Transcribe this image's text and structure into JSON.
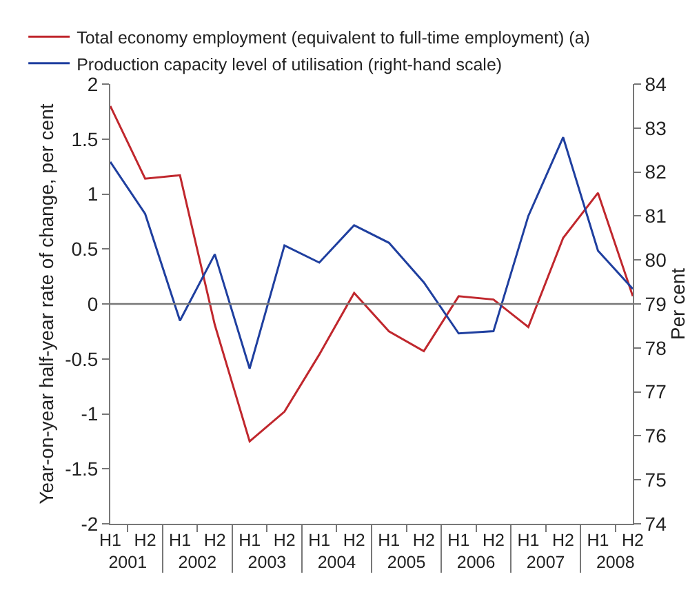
{
  "chart_data": {
    "type": "line",
    "ylabel": "Year-on-year half-year rate of change, per cent",
    "y2label": "Per cent",
    "categories": [
      "H1",
      "H2",
      "H1",
      "H2",
      "H1",
      "H2",
      "H1",
      "H2",
      "H1",
      "H2",
      "H1",
      "H2",
      "H1",
      "H2",
      "H1",
      "H2"
    ],
    "annotations": [
      "2001",
      "2002",
      "2003",
      "2004",
      "2005",
      "2006",
      "2007",
      "2008"
    ],
    "series": [
      {
        "name": "Total economy employment (equivalent to full-time employment) (a)",
        "color": "#c0272d",
        "values": [
          1.8,
          1.14,
          1.17,
          -0.19,
          -1.25,
          -0.98,
          -0.46,
          0.1,
          -0.25,
          -0.43,
          0.07,
          0.04,
          -0.21,
          0.6,
          1.01,
          0.07
        ]
      },
      {
        "name": "Production capacity level of utilisation (right-hand scale)",
        "color": "#1f3f9f",
        "axis": "y2",
        "values": [
          82.23,
          81.05,
          78.62,
          80.13,
          77.53,
          80.33,
          79.94,
          80.79,
          80.39,
          79.49,
          78.33,
          78.38,
          81.0,
          82.79,
          80.21,
          79.34
        ]
      }
    ],
    "ylim": [
      -2,
      2
    ],
    "yticks": [
      -2,
      -1.5,
      -1,
      -0.5,
      0,
      0.5,
      1,
      1.5,
      2
    ],
    "y2lim": [
      74,
      84
    ],
    "y2ticks": [
      74,
      75,
      76,
      77,
      78,
      79,
      80,
      81,
      82,
      83,
      84
    ],
    "ref_lines": [
      {
        "axis": "y",
        "value": 0,
        "color": "#777777"
      }
    ],
    "legend": "top left",
    "marker": "none",
    "line_style": "solid"
  }
}
